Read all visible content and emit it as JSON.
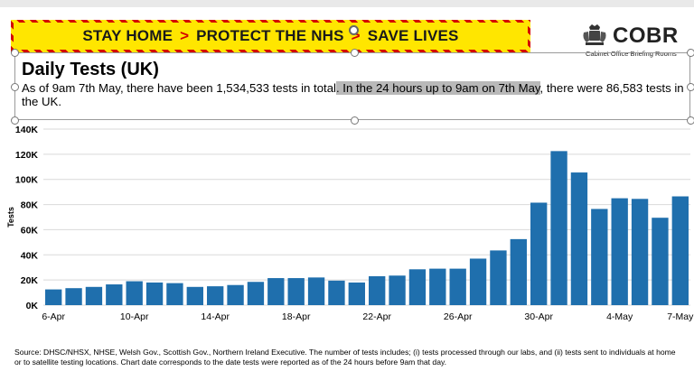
{
  "banner": {
    "part1": "STAY HOME",
    "part2": "PROTECT THE NHS",
    "part3": "SAVE LIVES",
    "arrow": ">"
  },
  "logo": {
    "word": "COBR",
    "subtitle": "Cabinet Office Briefing Rooms",
    "icon": "royal-crest-icon"
  },
  "heading": {
    "title": "Daily Tests (UK)",
    "subtitle_a": "As of 9am 7th May, there have been 1,534,533 tests in total",
    "subtitle_b": ". In the 24 hours up to 9am on 7th May",
    "subtitle_c": ", there were 86,583 tests in the UK."
  },
  "colors": {
    "bar": "#1f6fad",
    "banner_yellow": "#ffe600",
    "banner_red": "#d40000",
    "highlight": "#b9b9b9"
  },
  "chart_data": {
    "type": "bar",
    "title": "Daily Tests (UK)",
    "ylabel": "Tests",
    "xlabel": "",
    "ylim": [
      0,
      140000
    ],
    "yticks": [
      0,
      20000,
      40000,
      60000,
      80000,
      100000,
      120000,
      140000
    ],
    "ytick_labels": [
      "0K",
      "20K",
      "40K",
      "60K",
      "80K",
      "100K",
      "120K",
      "140K"
    ],
    "grid": true,
    "legend": "none",
    "categories": [
      "6-Apr",
      "7-Apr",
      "8-Apr",
      "9-Apr",
      "10-Apr",
      "11-Apr",
      "12-Apr",
      "13-Apr",
      "14-Apr",
      "15-Apr",
      "16-Apr",
      "17-Apr",
      "18-Apr",
      "19-Apr",
      "20-Apr",
      "21-Apr",
      "22-Apr",
      "23-Apr",
      "24-Apr",
      "25-Apr",
      "26-Apr",
      "27-Apr",
      "28-Apr",
      "29-Apr",
      "30-Apr",
      "1-May",
      "2-May",
      "3-May",
      "4-May",
      "5-May",
      "6-May",
      "7-May"
    ],
    "xtick_labels": [
      "6-Apr",
      "10-Apr",
      "14-Apr",
      "18-Apr",
      "22-Apr",
      "26-Apr",
      "30-Apr",
      "4-May",
      "7-May"
    ],
    "values": [
      12500,
      13500,
      14500,
      16500,
      19000,
      18000,
      17500,
      14500,
      15000,
      16000,
      18500,
      21500,
      21500,
      22000,
      19500,
      18000,
      23000,
      23500,
      28500,
      29000,
      29000,
      37000,
      43500,
      52500,
      81500,
      122500,
      105500,
      76500,
      85000,
      84500,
      69500,
      86500
    ]
  },
  "source": "Source: DHSC/NHSX, NHSE, Welsh Gov., Scottish Gov., Northern Ireland Executive. The number of tests includes; (i) tests processed through our labs, and (ii) tests sent to individuals at home or to satellite testing locations. Chart date corresponds to the date tests were reported as of the 24 hours before 9am that day."
}
